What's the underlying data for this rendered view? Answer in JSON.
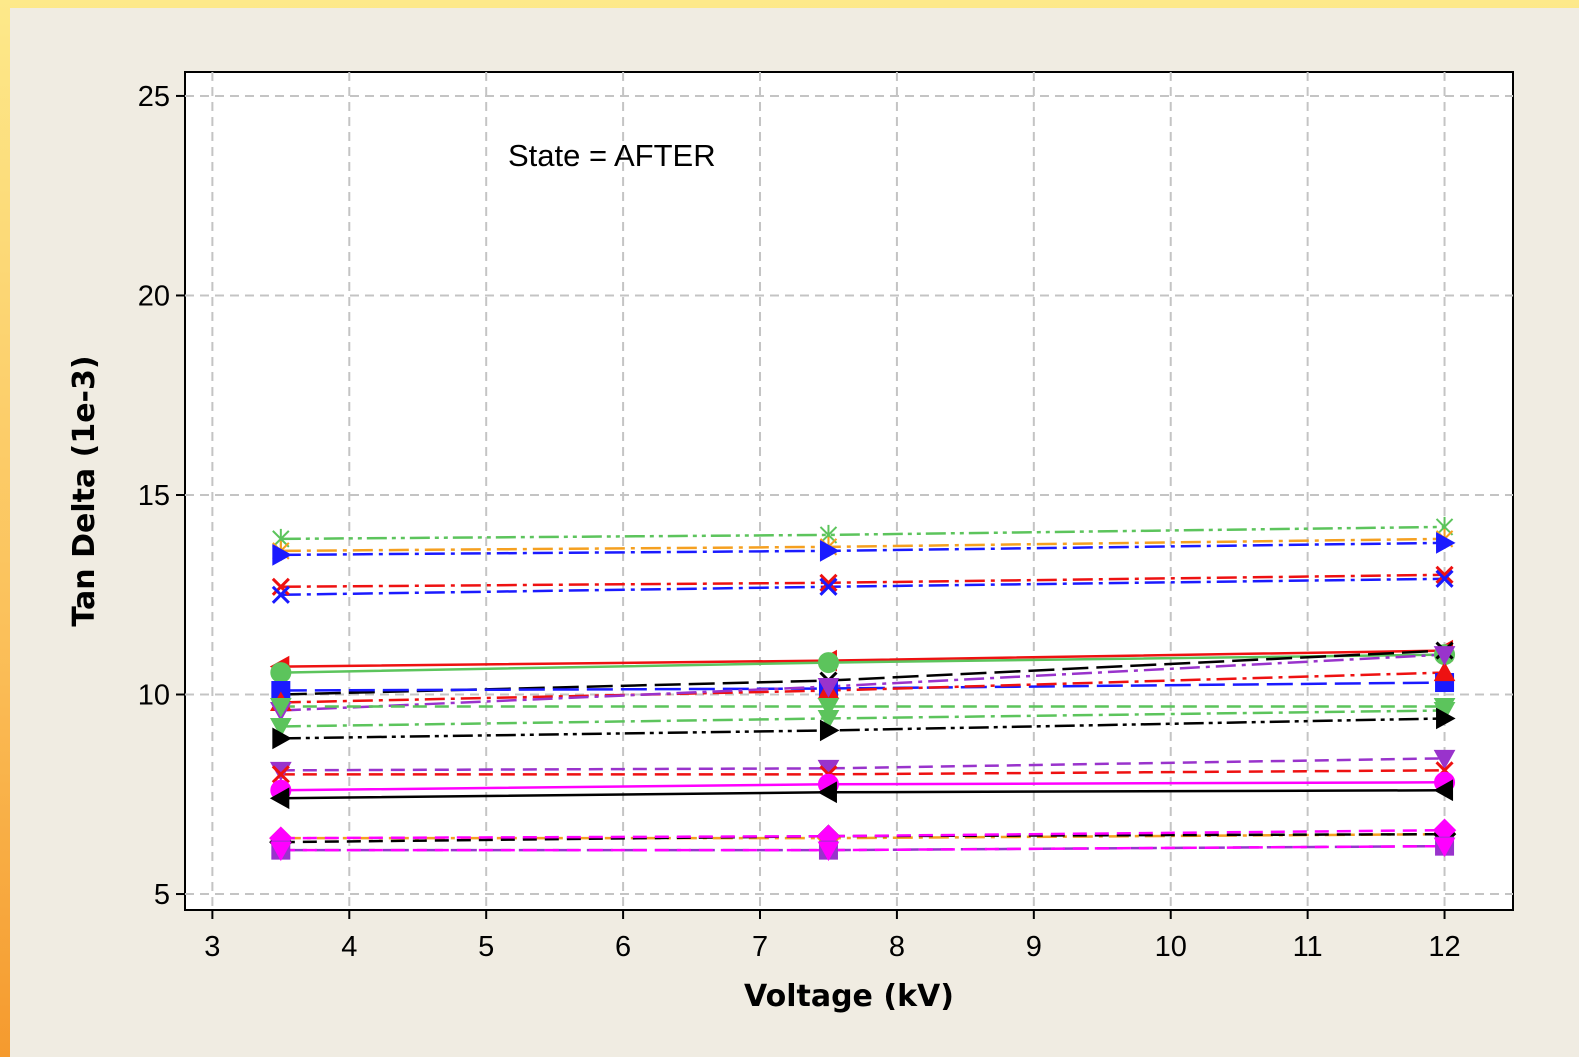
{
  "chart_data": {
    "type": "line",
    "title": "",
    "annotation": "State = AFTER",
    "xlabel": "Voltage (kV)",
    "ylabel": "Tan Delta (1e-3)",
    "xlim": [
      2.8,
      12.5
    ],
    "ylim": [
      4.6,
      25.6
    ],
    "x_ticks": [
      3,
      4,
      5,
      6,
      7,
      8,
      9,
      10,
      11,
      12
    ],
    "y_ticks": [
      5,
      10,
      15,
      20,
      25
    ],
    "x_tick_labels": [
      "3",
      "4",
      "5",
      "6",
      "7",
      "8",
      "9",
      "10",
      "11",
      "12"
    ],
    "y_tick_labels": [
      "5",
      "10",
      "15",
      "20",
      "25"
    ],
    "grid": true,
    "legend": "none",
    "x": [
      3.5,
      7.5,
      12
    ],
    "series": [
      {
        "values": [
          13.9,
          14.0,
          14.2
        ],
        "color": "#5cc45c",
        "dash": "dashdotdot",
        "marker": "asterisk"
      },
      {
        "values": [
          13.6,
          13.7,
          13.9
        ],
        "color": "#f5a020",
        "dash": "dashdot",
        "marker": "asterisk"
      },
      {
        "values": [
          13.5,
          13.6,
          13.8
        ],
        "color": "#1a1aff",
        "dash": "dashdot",
        "marker": "triangle-right"
      },
      {
        "values": [
          12.7,
          12.8,
          13.0
        ],
        "color": "#ee1111",
        "dash": "dashdot",
        "marker": "x"
      },
      {
        "values": [
          12.5,
          12.7,
          12.9
        ],
        "color": "#1a1aff",
        "dash": "dashdot",
        "marker": "x"
      },
      {
        "values": [
          10.7,
          10.85,
          11.1
        ],
        "color": "#ee1111",
        "dash": "solid",
        "marker": "triangle-left"
      },
      {
        "values": [
          10.55,
          10.8,
          11.0
        ],
        "color": "#5cc45c",
        "dash": "solid",
        "marker": "circle"
      },
      {
        "values": [
          10.0,
          10.35,
          11.1
        ],
        "color": "#000000",
        "dash": "longdash",
        "marker": "x"
      },
      {
        "values": [
          10.1,
          10.15,
          10.3
        ],
        "color": "#1a1aff",
        "dash": "longdash",
        "marker": "square"
      },
      {
        "values": [
          9.8,
          10.1,
          10.55
        ],
        "color": "#ee1111",
        "dash": "dashdot",
        "marker": "triangle-up"
      },
      {
        "values": [
          9.6,
          10.2,
          11.0
        ],
        "color": "#9933cc",
        "dash": "dashdot",
        "marker": "triangle-down"
      },
      {
        "values": [
          9.7,
          9.7,
          9.7
        ],
        "color": "#5cc45c",
        "dash": "dashed",
        "marker": "triangle-down"
      },
      {
        "values": [
          9.2,
          9.4,
          9.6
        ],
        "color": "#5cc45c",
        "dash": "dashdot",
        "marker": "triangle-down"
      },
      {
        "values": [
          8.9,
          9.1,
          9.4
        ],
        "color": "#000000",
        "dash": "dashdotdot",
        "marker": "triangle-right"
      },
      {
        "values": [
          8.1,
          8.15,
          8.4
        ],
        "color": "#9933cc",
        "dash": "dashed",
        "marker": "triangle-down"
      },
      {
        "values": [
          8.0,
          8.0,
          8.1
        ],
        "color": "#ee1111",
        "dash": "dashed",
        "marker": "x"
      },
      {
        "values": [
          7.6,
          7.75,
          7.8
        ],
        "color": "#ff00ff",
        "dash": "solid",
        "marker": "circle"
      },
      {
        "values": [
          7.4,
          7.55,
          7.6
        ],
        "color": "#000000",
        "dash": "solid",
        "marker": "triangle-left"
      },
      {
        "values": [
          6.4,
          6.4,
          6.5
        ],
        "color": "#f5a020",
        "dash": "dashdot",
        "marker": "diamond"
      },
      {
        "values": [
          6.3,
          6.45,
          6.5
        ],
        "color": "#000000",
        "dash": "dashed",
        "marker": "diamond"
      },
      {
        "values": [
          6.4,
          6.45,
          6.6
        ],
        "color": "#ff00ff",
        "dash": "dashed",
        "marker": "diamond"
      },
      {
        "values": [
          6.1,
          6.1,
          6.2
        ],
        "color": "#9933cc",
        "dash": "longdash",
        "marker": "square"
      },
      {
        "values": [
          6.1,
          6.1,
          6.2
        ],
        "color": "#ff00ff",
        "dash": "dashed",
        "marker": "triangle-down"
      }
    ]
  }
}
